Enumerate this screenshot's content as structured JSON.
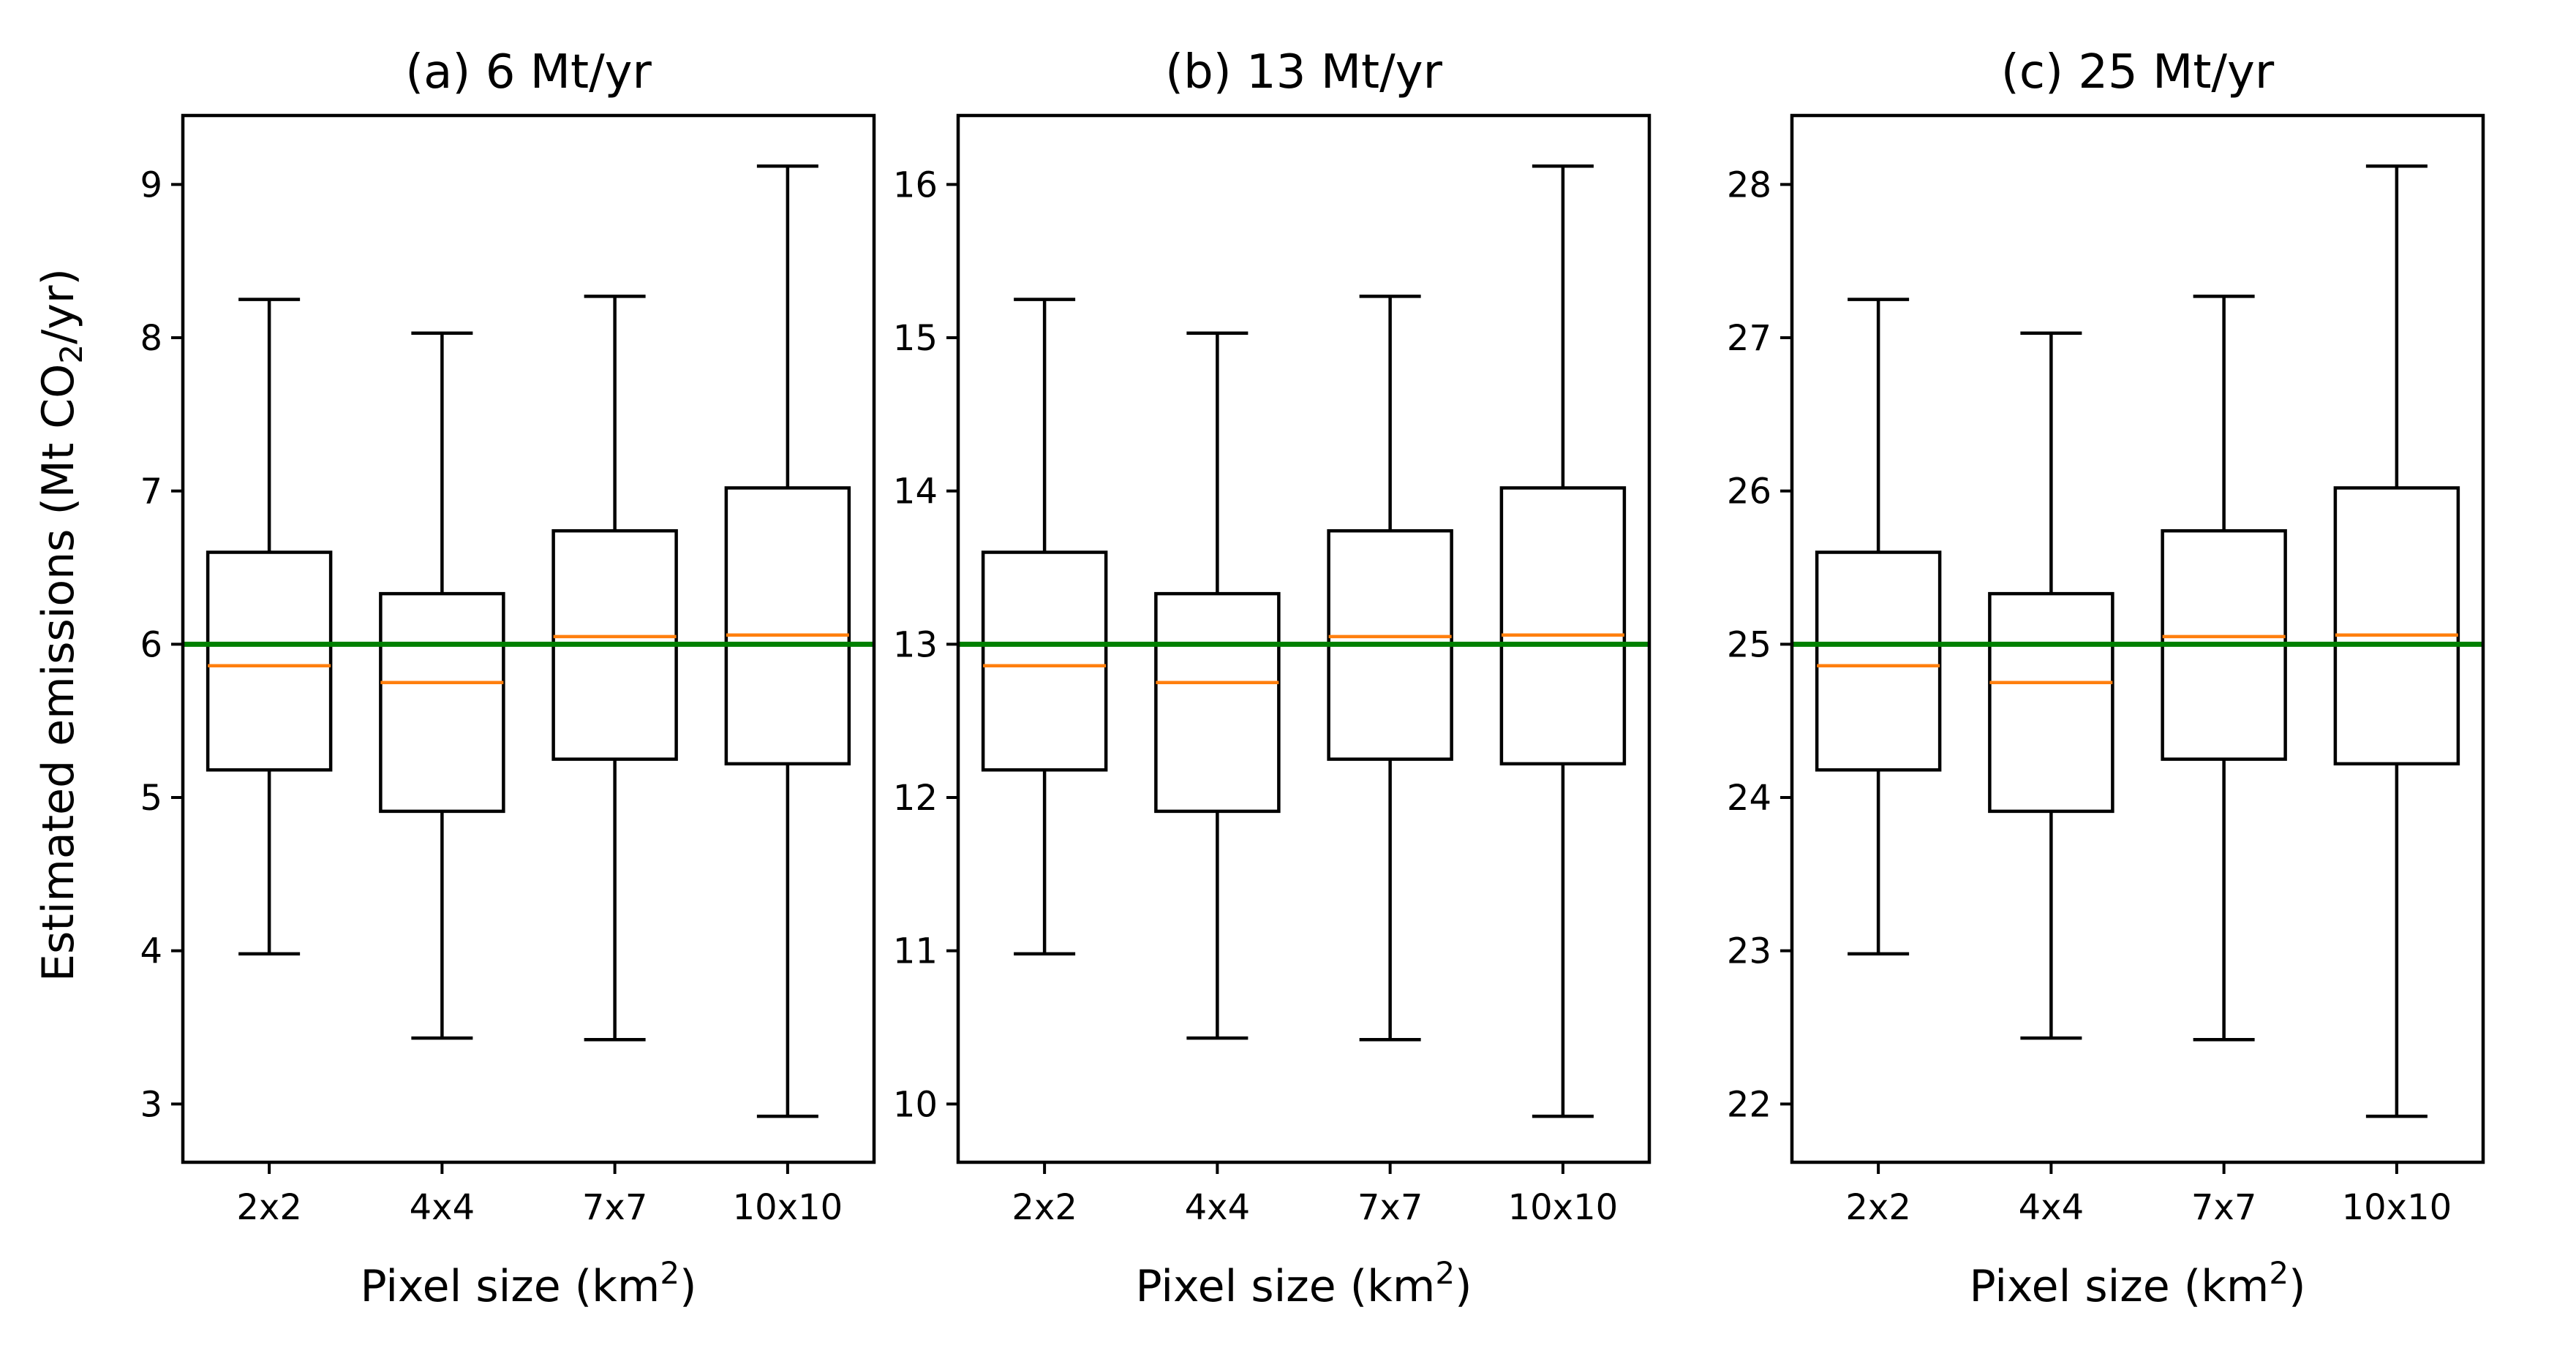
{
  "chart_data": [
    {
      "type": "box",
      "title": "(a) 6 Mt/yr",
      "xlabel": "Pixel size (km",
      "xlabel_sup": "2",
      "xlabel_end": ")",
      "ylabel": "Estimated emissions (Mt CO",
      "ylabel_sub": "2",
      "ylabel_end": "/yr)",
      "ylim": [
        2.62,
        9.45
      ],
      "yticks": [
        3,
        4,
        5,
        6,
        7,
        8,
        9
      ],
      "categories": [
        "2x2",
        "4x4",
        "7x7",
        "10x10"
      ],
      "boxes": [
        {
          "whislo": 3.98,
          "q1": 5.18,
          "median": 5.86,
          "q3": 6.6,
          "whishi": 8.25
        },
        {
          "whislo": 3.43,
          "q1": 4.91,
          "median": 5.75,
          "q3": 6.33,
          "whishi": 8.03
        },
        {
          "whislo": 3.42,
          "q1": 5.25,
          "median": 6.05,
          "q3": 6.74,
          "whishi": 8.27
        },
        {
          "whislo": 2.92,
          "q1": 5.22,
          "median": 6.06,
          "q3": 7.02,
          "whishi": 9.12
        }
      ],
      "reference": 6
    },
    {
      "type": "box",
      "title": "(b) 13 Mt/yr",
      "xlabel": "Pixel size (km",
      "xlabel_sup": "2",
      "xlabel_end": ")",
      "ylim": [
        9.62,
        16.45
      ],
      "yticks": [
        10,
        11,
        12,
        13,
        14,
        15,
        16
      ],
      "categories": [
        "2x2",
        "4x4",
        "7x7",
        "10x10"
      ],
      "boxes": [
        {
          "whislo": 10.98,
          "q1": 12.18,
          "median": 12.86,
          "q3": 13.6,
          "whishi": 15.25
        },
        {
          "whislo": 10.43,
          "q1": 11.91,
          "median": 12.75,
          "q3": 13.33,
          "whishi": 15.03
        },
        {
          "whislo": 10.42,
          "q1": 12.25,
          "median": 13.05,
          "q3": 13.74,
          "whishi": 15.27
        },
        {
          "whislo": 9.92,
          "q1": 12.22,
          "median": 13.06,
          "q3": 14.02,
          "whishi": 16.12
        }
      ],
      "reference": 13
    },
    {
      "type": "box",
      "title": "(c) 25 Mt/yr",
      "xlabel": "Pixel size (km",
      "xlabel_sup": "2",
      "xlabel_end": ")",
      "ylim": [
        21.62,
        28.45
      ],
      "yticks": [
        22,
        23,
        24,
        25,
        26,
        27,
        28
      ],
      "categories": [
        "2x2",
        "4x4",
        "7x7",
        "10x10"
      ],
      "boxes": [
        {
          "whislo": 22.98,
          "q1": 24.18,
          "median": 24.86,
          "q3": 25.6,
          "whishi": 27.25
        },
        {
          "whislo": 22.43,
          "q1": 23.91,
          "median": 24.75,
          "q3": 25.33,
          "whishi": 27.03
        },
        {
          "whislo": 22.42,
          "q1": 24.25,
          "median": 25.05,
          "q3": 25.74,
          "whishi": 27.27
        },
        {
          "whislo": 21.92,
          "q1": 24.22,
          "median": 25.06,
          "q3": 26.02,
          "whishi": 28.12
        }
      ],
      "reference": 25
    }
  ],
  "colors": {
    "median": "#ff7f0e",
    "reference": "#008000",
    "axis": "#000000"
  }
}
